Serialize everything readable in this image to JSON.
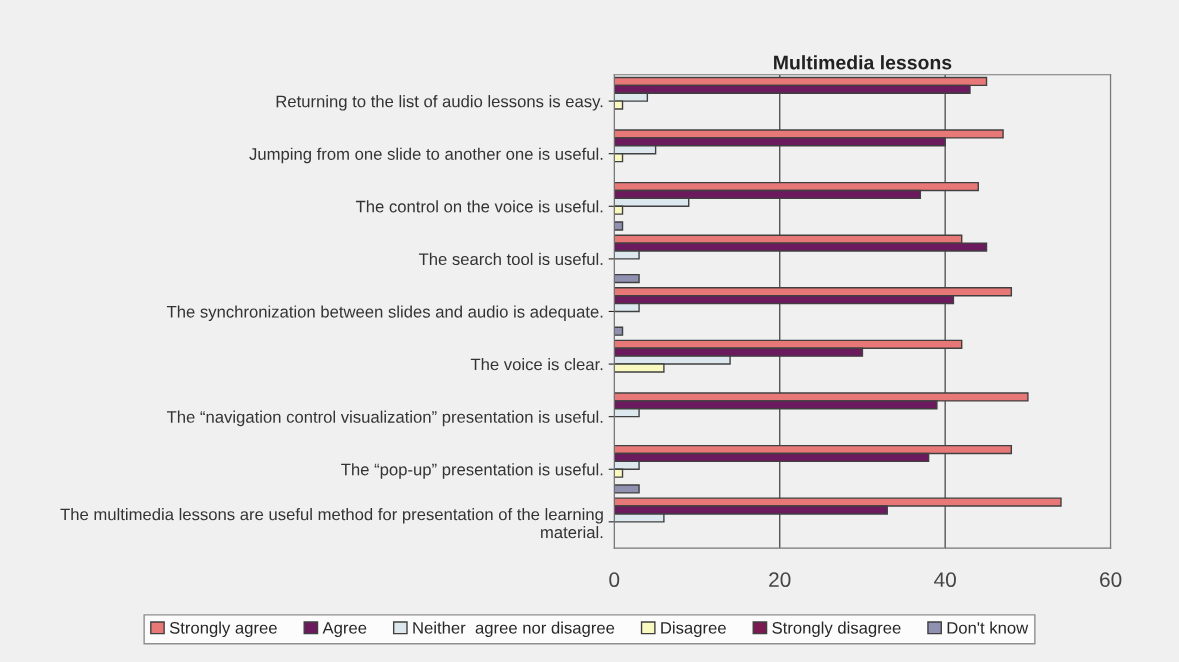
{
  "chart_data": {
    "type": "bar",
    "orientation": "horizontal",
    "title": "Multimedia lessons",
    "categories": [
      "Returning to the list of audio lessons is easy.",
      "Jumping from one slide to another one is useful.",
      "The control on the voice is useful.",
      "The search tool is useful.",
      "The synchronization between slides and audio is adequate.",
      "The voice is clear.",
      "The “navigation control visualization” presentation is useful.",
      "The “pop-up” presentation is useful.",
      "The multimedia lessons are useful method for presentation of the learning material."
    ],
    "series": [
      {
        "name": "Strongly agree",
        "color": "#e87878",
        "values": [
          45,
          47,
          44,
          42,
          48,
          42,
          50,
          48,
          54
        ]
      },
      {
        "name": "Agree",
        "color": "#6b1a5e",
        "values": [
          43,
          40,
          37,
          45,
          41,
          30,
          39,
          38,
          33
        ]
      },
      {
        "name": "Neither  agree nor disagree",
        "color": "#dde8ee",
        "values": [
          4,
          5,
          9,
          3,
          3,
          14,
          3,
          3,
          6
        ]
      },
      {
        "name": "Disagree",
        "color": "#fafac0",
        "values": [
          1,
          1,
          1,
          null,
          null,
          6,
          null,
          1,
          null
        ]
      },
      {
        "name": "Strongly disagree",
        "color": "#7a1a50",
        "values": [
          null,
          null,
          null,
          null,
          null,
          null,
          null,
          null,
          null
        ]
      },
      {
        "name": "Don't know",
        "color": "#9090b0",
        "values": [
          null,
          null,
          1,
          3,
          1,
          null,
          null,
          3,
          null
        ]
      }
    ],
    "xlim": [
      0,
      60
    ],
    "xticks": [
      0,
      20,
      40,
      60
    ],
    "grid": "x",
    "legend": "bottom"
  }
}
